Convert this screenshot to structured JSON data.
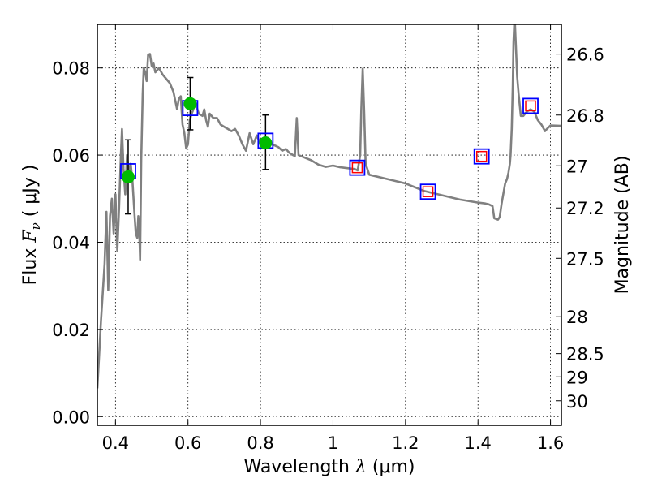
{
  "chart_data": {
    "type": "scatter",
    "xlabel": {
      "prefix": "Wavelength  ",
      "symbol": "λ",
      "unit": " (μm)"
    },
    "ylabel": {
      "prefix": "Flux  ",
      "symbol": "F",
      "subscript": "ν",
      "unit": "  ( μJy )"
    },
    "y2label": "Magnitude (AB)",
    "xlim": [
      0.35,
      1.63
    ],
    "ylim": [
      -0.002,
      0.09
    ],
    "grid": true,
    "x_ticks": [
      {
        "value": 0.4,
        "label": "0.4"
      },
      {
        "value": 0.6,
        "label": "0.6"
      },
      {
        "value": 0.8,
        "label": "0.8"
      },
      {
        "value": 1.0,
        "label": "1"
      },
      {
        "value": 1.2,
        "label": "1.2"
      },
      {
        "value": 1.4,
        "label": "1.4"
      },
      {
        "value": 1.6,
        "label": "1.6"
      }
    ],
    "y_ticks": [
      {
        "value": 0.0,
        "label": "0.00"
      },
      {
        "value": 0.02,
        "label": "0.02"
      },
      {
        "value": 0.04,
        "label": "0.04"
      },
      {
        "value": 0.06,
        "label": "0.06"
      },
      {
        "value": 0.08,
        "label": "0.08"
      }
    ],
    "magnitude_ticks": [
      {
        "value": 26.6,
        "label": "26.6"
      },
      {
        "value": 26.8,
        "label": "26.8"
      },
      {
        "value": 27.0,
        "label": "27"
      },
      {
        "value": 27.2,
        "label": "27.2"
      },
      {
        "value": 27.5,
        "label": "27.5"
      },
      {
        "value": 28.0,
        "label": "28"
      },
      {
        "value": 28.5,
        "label": "28.5"
      },
      {
        "value": 29.0,
        "label": "29"
      },
      {
        "value": 30.0,
        "label": "30"
      }
    ],
    "observed": [
      {
        "x": 0.435,
        "y": 0.055,
        "yerr_low": 0.0465,
        "yerr_high": 0.0635
      },
      {
        "x": 0.606,
        "y": 0.0718,
        "yerr_low": 0.0658,
        "yerr_high": 0.0778
      },
      {
        "x": 0.814,
        "y": 0.0628,
        "yerr_low": 0.0567,
        "yerr_high": 0.0692
      }
    ],
    "model_photometry_blue": [
      {
        "x": 0.435,
        "y": 0.0563
      },
      {
        "x": 0.606,
        "y": 0.0708
      },
      {
        "x": 0.814,
        "y": 0.0633
      },
      {
        "x": 1.067,
        "y": 0.0571
      },
      {
        "x": 1.262,
        "y": 0.0516
      },
      {
        "x": 1.41,
        "y": 0.0597
      },
      {
        "x": 1.545,
        "y": 0.0713
      }
    ],
    "model_photometry_red": [
      {
        "x": 1.067,
        "y": 0.0571
      },
      {
        "x": 1.262,
        "y": 0.0516
      },
      {
        "x": 1.41,
        "y": 0.0597
      },
      {
        "x": 1.545,
        "y": 0.0713
      }
    ],
    "sed_model": [
      [
        0.35,
        0.0065
      ],
      [
        0.36,
        0.022
      ],
      [
        0.37,
        0.035
      ],
      [
        0.375,
        0.047
      ],
      [
        0.38,
        0.029
      ],
      [
        0.385,
        0.046
      ],
      [
        0.39,
        0.05
      ],
      [
        0.395,
        0.042
      ],
      [
        0.4,
        0.051
      ],
      [
        0.405,
        0.038
      ],
      [
        0.41,
        0.048
      ],
      [
        0.415,
        0.06
      ],
      [
        0.418,
        0.066
      ],
      [
        0.422,
        0.057
      ],
      [
        0.427,
        0.051
      ],
      [
        0.432,
        0.06
      ],
      [
        0.437,
        0.056
      ],
      [
        0.442,
        0.058
      ],
      [
        0.447,
        0.054
      ],
      [
        0.452,
        0.047
      ],
      [
        0.456,
        0.042
      ],
      [
        0.46,
        0.041
      ],
      [
        0.463,
        0.046
      ],
      [
        0.466,
        0.042
      ],
      [
        0.468,
        0.036
      ],
      [
        0.471,
        0.059
      ],
      [
        0.475,
        0.074
      ],
      [
        0.478,
        0.08
      ],
      [
        0.482,
        0.079
      ],
      [
        0.486,
        0.077
      ],
      [
        0.49,
        0.083
      ],
      [
        0.495,
        0.0832
      ],
      [
        0.5,
        0.0805
      ],
      [
        0.505,
        0.081
      ],
      [
        0.51,
        0.079
      ],
      [
        0.52,
        0.08
      ],
      [
        0.53,
        0.0785
      ],
      [
        0.54,
        0.0775
      ],
      [
        0.55,
        0.0765
      ],
      [
        0.56,
        0.0745
      ],
      [
        0.57,
        0.0705
      ],
      [
        0.575,
        0.073
      ],
      [
        0.58,
        0.0735
      ],
      [
        0.585,
        0.067
      ],
      [
        0.59,
        0.065
      ],
      [
        0.595,
        0.0615
      ],
      [
        0.6,
        0.0625
      ],
      [
        0.605,
        0.068
      ],
      [
        0.61,
        0.0695
      ],
      [
        0.615,
        0.0705
      ],
      [
        0.62,
        0.072
      ],
      [
        0.63,
        0.0695
      ],
      [
        0.64,
        0.069
      ],
      [
        0.645,
        0.0705
      ],
      [
        0.65,
        0.068
      ],
      [
        0.655,
        0.0665
      ],
      [
        0.66,
        0.0695
      ],
      [
        0.67,
        0.0685
      ],
      [
        0.68,
        0.0685
      ],
      [
        0.69,
        0.067
      ],
      [
        0.7,
        0.0665
      ],
      [
        0.71,
        0.066
      ],
      [
        0.72,
        0.0655
      ],
      [
        0.73,
        0.066
      ],
      [
        0.74,
        0.0645
      ],
      [
        0.75,
        0.0625
      ],
      [
        0.76,
        0.061
      ],
      [
        0.77,
        0.065
      ],
      [
        0.78,
        0.0625
      ],
      [
        0.79,
        0.0645
      ],
      [
        0.8,
        0.0625
      ],
      [
        0.81,
        0.064
      ],
      [
        0.82,
        0.063
      ],
      [
        0.83,
        0.0625
      ],
      [
        0.84,
        0.0622
      ],
      [
        0.85,
        0.0618
      ],
      [
        0.86,
        0.061
      ],
      [
        0.87,
        0.0614
      ],
      [
        0.88,
        0.0605
      ],
      [
        0.89,
        0.06
      ],
      [
        0.895,
        0.0598
      ],
      [
        0.9,
        0.0685
      ],
      [
        0.905,
        0.06
      ],
      [
        0.92,
        0.0595
      ],
      [
        0.94,
        0.0588
      ],
      [
        0.96,
        0.0578
      ],
      [
        0.98,
        0.0573
      ],
      [
        1.0,
        0.0576
      ],
      [
        1.02,
        0.0572
      ],
      [
        1.04,
        0.057
      ],
      [
        1.06,
        0.0568
      ],
      [
        1.068,
        0.0565
      ],
      [
        1.075,
        0.06
      ],
      [
        1.078,
        0.07
      ],
      [
        1.082,
        0.0798
      ],
      [
        1.086,
        0.07
      ],
      [
        1.09,
        0.058
      ],
      [
        1.1,
        0.0555
      ],
      [
        1.15,
        0.0545
      ],
      [
        1.2,
        0.0535
      ],
      [
        1.25,
        0.0518
      ],
      [
        1.3,
        0.0508
      ],
      [
        1.35,
        0.0498
      ],
      [
        1.4,
        0.0491
      ],
      [
        1.42,
        0.0489
      ],
      [
        1.43,
        0.0487
      ],
      [
        1.44,
        0.0483
      ],
      [
        1.445,
        0.0455
      ],
      [
        1.455,
        0.0452
      ],
      [
        1.46,
        0.0458
      ],
      [
        1.465,
        0.0488
      ],
      [
        1.475,
        0.0535
      ],
      [
        1.48,
        0.0545
      ],
      [
        1.484,
        0.056
      ],
      [
        1.488,
        0.058
      ],
      [
        1.49,
        0.06
      ],
      [
        1.493,
        0.066
      ],
      [
        1.496,
        0.076
      ],
      [
        1.498,
        0.086
      ],
      [
        1.5,
        0.09
      ],
      [
        1.502,
        0.09
      ],
      [
        1.504,
        0.086
      ],
      [
        1.508,
        0.078
      ],
      [
        1.512,
        0.074
      ],
      [
        1.518,
        0.069
      ],
      [
        1.525,
        0.069
      ],
      [
        1.535,
        0.07
      ],
      [
        1.545,
        0.0705
      ],
      [
        1.555,
        0.07
      ],
      [
        1.565,
        0.068
      ],
      [
        1.575,
        0.067
      ],
      [
        1.585,
        0.0655
      ],
      [
        1.59,
        0.066
      ],
      [
        1.6,
        0.0668
      ],
      [
        1.63,
        0.0667
      ]
    ],
    "colors": {
      "sed": "#808080",
      "observed": "#00bb00",
      "errorbar": "#000000",
      "model_blue": "#0000ff",
      "model_red": "#ff0000"
    }
  }
}
